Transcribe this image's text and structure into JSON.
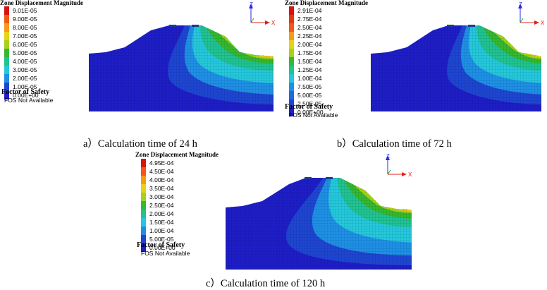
{
  "legend_title": "Zone Displacement Magnitude",
  "fos_title": "Factor of Safety",
  "fos_status": "FOS Not Available",
  "axis_z": "Z",
  "axis_x": "X",
  "colors": {
    "levels": [
      "#d8140c",
      "#f05a14",
      "#f79a1a",
      "#e6d312",
      "#a5d21a",
      "#35b832",
      "#20c392",
      "#24c8dc",
      "#1e90e6",
      "#1e46d2",
      "#1e1ec8"
    ],
    "axis_z": "#2a2ae0",
    "axis_x": "#e02020",
    "axis_y": "#20b020"
  },
  "panels": [
    {
      "caption": "a）Calculation time of 24 h",
      "legend": [
        "9.01E-05",
        "9.00E-05",
        "8.00E-05",
        "7.00E-05",
        "6.00E-05",
        "5.00E-05",
        "4.00E-05",
        "3.00E-05",
        "2.00E-05",
        "1.00E-05",
        "0.00E+00"
      ]
    },
    {
      "caption": "b）Calculation time of 72 h",
      "legend": [
        "2.91E-04",
        "2.75E-04",
        "2.50E-04",
        "2.25E-04",
        "2.00E-04",
        "1.75E-04",
        "1.50E-04",
        "1.25E-04",
        "1.00E-04",
        "7.50E-05",
        "5.00E-05",
        "2.50E-05",
        "0.00E+00"
      ]
    },
    {
      "caption": "c）Calculation time of 120 h",
      "legend": [
        "4.95E-04",
        "4.50E-04",
        "4.00E-04",
        "3.50E-04",
        "3.00E-04",
        "2.50E-04",
        "2.00E-04",
        "1.50E-04",
        "1.00E-04",
        "5.00E-05",
        "0.00E+00"
      ]
    }
  ]
}
